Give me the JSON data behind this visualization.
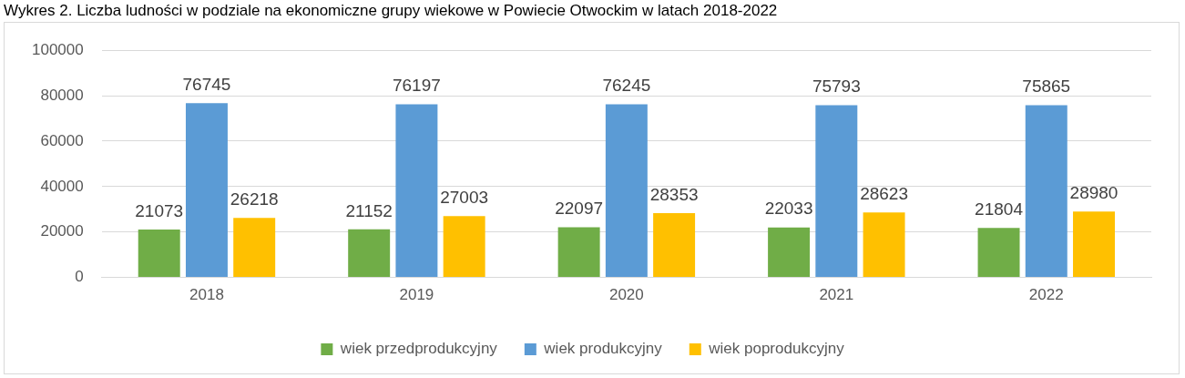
{
  "chart_data": {
    "type": "bar",
    "title": "Wykres 2. Liczba ludności w podziale na ekonomiczne grupy wiekowe w Powiecie Otwockim w latach 2018-2022",
    "categories": [
      "2018",
      "2019",
      "2020",
      "2021",
      "2022"
    ],
    "series": [
      {
        "name": "wiek przedprodukcyjny",
        "color": "#70ad47",
        "values": [
          21073,
          21152,
          22097,
          22033,
          21804
        ]
      },
      {
        "name": "wiek produkcyjny",
        "color": "#5b9bd5",
        "values": [
          76745,
          76197,
          76245,
          75793,
          75865
        ]
      },
      {
        "name": "wiek poprodukcyjny",
        "color": "#ffc000",
        "values": [
          26218,
          27003,
          28353,
          28623,
          28980
        ]
      }
    ],
    "ylim": [
      0,
      100000
    ],
    "yticks": [
      0,
      20000,
      40000,
      60000,
      80000,
      100000
    ],
    "grid": "y",
    "legend": "bottom",
    "data_labels": true
  }
}
